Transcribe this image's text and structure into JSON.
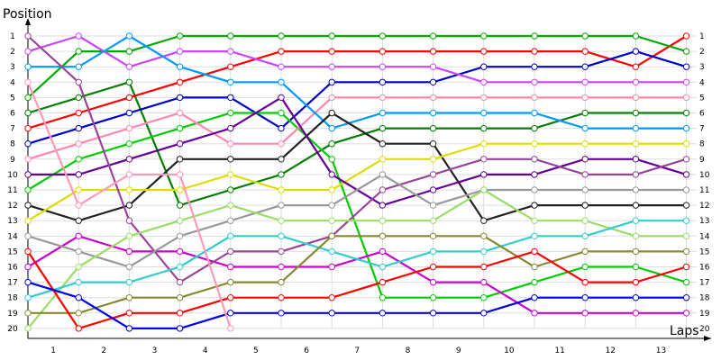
{
  "chart_data": {
    "type": "line",
    "ylabel": "Position",
    "xlabel": "Laps",
    "laps": [
      1,
      2,
      3,
      4,
      5,
      6,
      7,
      8,
      9,
      10,
      11,
      12,
      13
    ],
    "positions": [
      1,
      2,
      3,
      4,
      5,
      6,
      7,
      8,
      9,
      10,
      11,
      12,
      13,
      14,
      15,
      16,
      17,
      18,
      19,
      20
    ],
    "y_inverted": true,
    "grid": true,
    "series": [
      {
        "color": "#008000",
        "values": [
          6,
          5,
          4,
          12,
          11,
          10,
          8,
          7,
          7,
          7,
          7,
          6,
          6,
          6
        ]
      },
      {
        "color": "#FF0000",
        "values": [
          7,
          6,
          5,
          4,
          3,
          2,
          2,
          2,
          2,
          2,
          2,
          2,
          3,
          1
        ]
      },
      {
        "color": "#0000CC",
        "values": [
          8,
          7,
          6,
          5,
          5,
          7,
          4,
          4,
          4,
          3,
          3,
          3,
          2,
          3
        ]
      },
      {
        "color": "#00CC00",
        "values": [
          11,
          9,
          8,
          7,
          6,
          6,
          9,
          18,
          18,
          18,
          17,
          16,
          16,
          17
        ]
      },
      {
        "color": "#FF88AA",
        "values": [
          9,
          8,
          7,
          6,
          8,
          8,
          5,
          5,
          5,
          5,
          5,
          5,
          5,
          5
        ]
      },
      {
        "color": "#CC00CC",
        "values": [
          16,
          14,
          15,
          15,
          16,
          16,
          16,
          15,
          17,
          17,
          19,
          19,
          19,
          19
        ]
      },
      {
        "color": "#00AA00",
        "values": [
          5,
          2,
          2,
          1,
          1,
          1,
          1,
          1,
          1,
          1,
          1,
          1,
          1,
          2
        ]
      },
      {
        "color": "#CC44FF",
        "values": [
          2,
          1,
          3,
          2,
          2,
          3,
          3,
          3,
          3,
          4,
          4,
          4,
          4,
          4
        ]
      },
      {
        "color": "#0099FF",
        "values": [
          3,
          3,
          1,
          3,
          4,
          4,
          7,
          6,
          6,
          6,
          6,
          7,
          7,
          7
        ]
      },
      {
        "color": "#222222",
        "values": [
          12,
          13,
          12,
          9,
          9,
          9,
          6,
          8,
          8,
          13,
          12,
          12,
          12,
          12
        ]
      },
      {
        "color": "#DDDD00",
        "values": [
          13,
          11,
          11,
          11,
          10,
          11,
          11,
          9,
          9,
          8,
          8,
          8,
          8,
          8
        ]
      },
      {
        "color": "#660099",
        "values": [
          10,
          10,
          9,
          8,
          7,
          5,
          10,
          12,
          11,
          10,
          10,
          9,
          9,
          10
        ]
      },
      {
        "color": "#994499",
        "values": [
          1,
          4,
          13,
          17,
          15,
          15,
          14,
          11,
          10,
          9,
          9,
          10,
          10,
          9
        ]
      },
      {
        "color": "#999999",
        "values": [
          14,
          15,
          16,
          14,
          13,
          12,
          12,
          10,
          12,
          11,
          11,
          11,
          11,
          11
        ]
      },
      {
        "color": "#99DD66",
        "values": [
          20,
          16,
          14,
          13,
          12,
          13,
          13,
          13,
          13,
          11,
          13,
          13,
          14,
          14
        ]
      },
      {
        "color": "#33CCCC",
        "values": [
          18,
          17,
          17,
          16,
          14,
          14,
          15,
          16,
          15,
          15,
          14,
          14,
          13,
          13
        ]
      },
      {
        "color": "#888833",
        "values": [
          19,
          19,
          18,
          18,
          17,
          17,
          14,
          14,
          14,
          14,
          16,
          15,
          15,
          15
        ]
      },
      {
        "color": "#FF0000",
        "values": [
          15,
          20,
          19,
          19,
          18,
          18,
          18,
          17,
          16,
          16,
          15,
          17,
          17,
          16
        ]
      },
      {
        "color": "#0000EE",
        "values": [
          17,
          18,
          20,
          20,
          19,
          19,
          19,
          19,
          19,
          19,
          18,
          18,
          18,
          18
        ]
      },
      {
        "color": "#FF99BB",
        "values": [
          4,
          12,
          10,
          10,
          20
        ]
      }
    ]
  }
}
